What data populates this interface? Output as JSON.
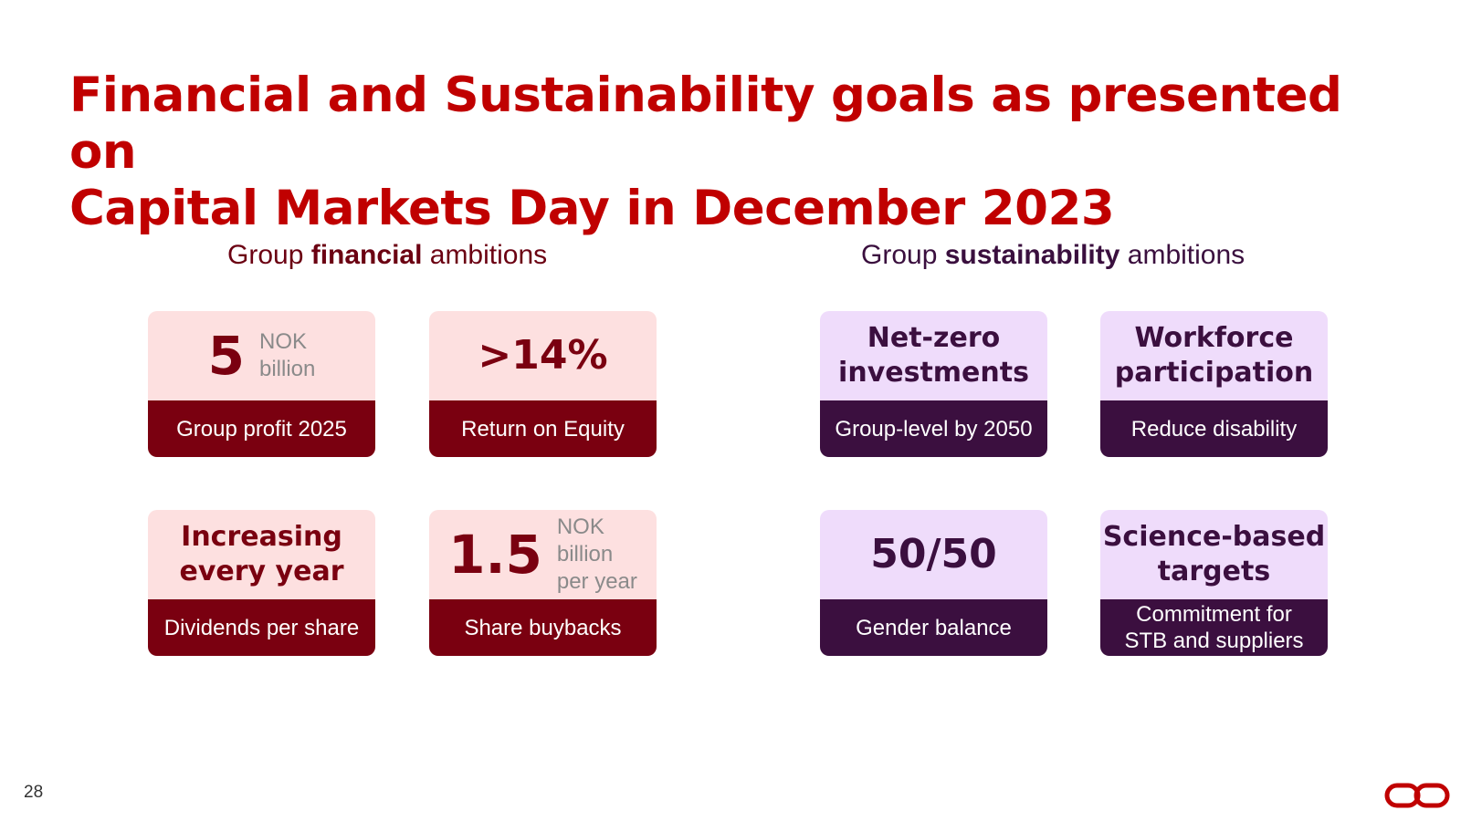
{
  "slide": {
    "title_line1": "Financial and Sustainability goals as presented on",
    "title_line2": "Capital Markets Day in December 2023",
    "page_number": "28"
  },
  "financial": {
    "heading_pre": "Group ",
    "heading_bold": "financial",
    "heading_post": " ambitions",
    "cards": [
      {
        "value": "5",
        "unit": [
          "NOK",
          "billion"
        ],
        "label": "Group profit 2025"
      },
      {
        "value": ">14%",
        "label": "Return on Equity"
      },
      {
        "value": [
          "Increasing",
          "every year"
        ],
        "label": "Dividends per share"
      },
      {
        "value": "1.5",
        "unit": [
          "NOK",
          "billion",
          "per year"
        ],
        "label": "Share buybacks"
      }
    ]
  },
  "sustainability": {
    "heading_pre": "Group ",
    "heading_bold": "sustainability",
    "heading_post": " ambitions",
    "cards": [
      {
        "value": [
          "Net-zero",
          "investments"
        ],
        "label": "Group-level by 2050"
      },
      {
        "value": [
          "Workforce",
          "participation"
        ],
        "label": "Reduce disability"
      },
      {
        "value": "50/50",
        "label": "Gender balance"
      },
      {
        "value": [
          "Science-based",
          "targets"
        ],
        "label": [
          "Commitment for",
          "STB and suppliers"
        ]
      }
    ]
  },
  "colors": {
    "title": "#c00000",
    "financial_dark": "#7a0010",
    "financial_light": "#fde0e0",
    "sustainability_dark": "#3b0f3f",
    "sustainability_light": "#efdcfb"
  },
  "icons": {
    "logo": "link-chain-icon"
  }
}
